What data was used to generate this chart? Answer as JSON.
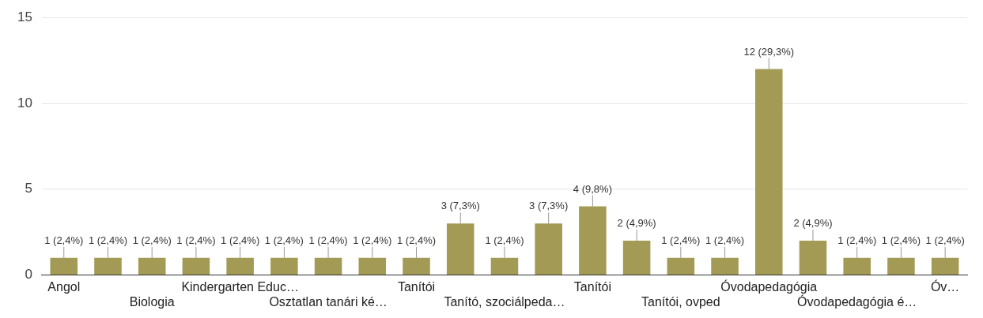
{
  "chart_data": {
    "type": "bar",
    "categories": [
      "Angol",
      null,
      "Biologia",
      null,
      "Kindergarten Educ…",
      null,
      "Osztatlan tanári ké…",
      null,
      "Tanítói",
      null,
      "Tanító, szociálpeda…",
      null,
      "Tanítói",
      null,
      "Tanítói, ovped",
      null,
      "Óvodapedagógia",
      null,
      "Óvodapedagógia é…",
      null,
      "Óv…"
    ],
    "values": [
      1,
      1,
      1,
      1,
      1,
      1,
      1,
      1,
      1,
      3,
      1,
      3,
      4,
      2,
      1,
      1,
      12,
      2,
      1,
      1,
      1
    ],
    "value_labels": [
      "1 (2,4%)",
      "1 (2,4%)",
      "1 (2,4%)",
      "1 (2,4%)",
      "1 (2,4%)",
      "1 (2,4%)",
      "1 (2,4%)",
      "1 (2,4%)",
      "1 (2,4%)",
      "3 (7,3%)",
      "1 (2,4%)",
      "3 (7,3%)",
      "4 (9,8%)",
      "2 (4,9%)",
      "1 (2,4%)",
      "1 (2,4%)",
      "12 (29,3%)",
      "2 (4,9%)",
      "1 (2,4%)",
      "1 (2,4%)",
      "1 (2,4%)"
    ],
    "color": "#a39a55",
    "ylim": [
      0,
      15
    ],
    "yticks": [
      0,
      5,
      10,
      15
    ],
    "grid": "y",
    "legend": false
  }
}
